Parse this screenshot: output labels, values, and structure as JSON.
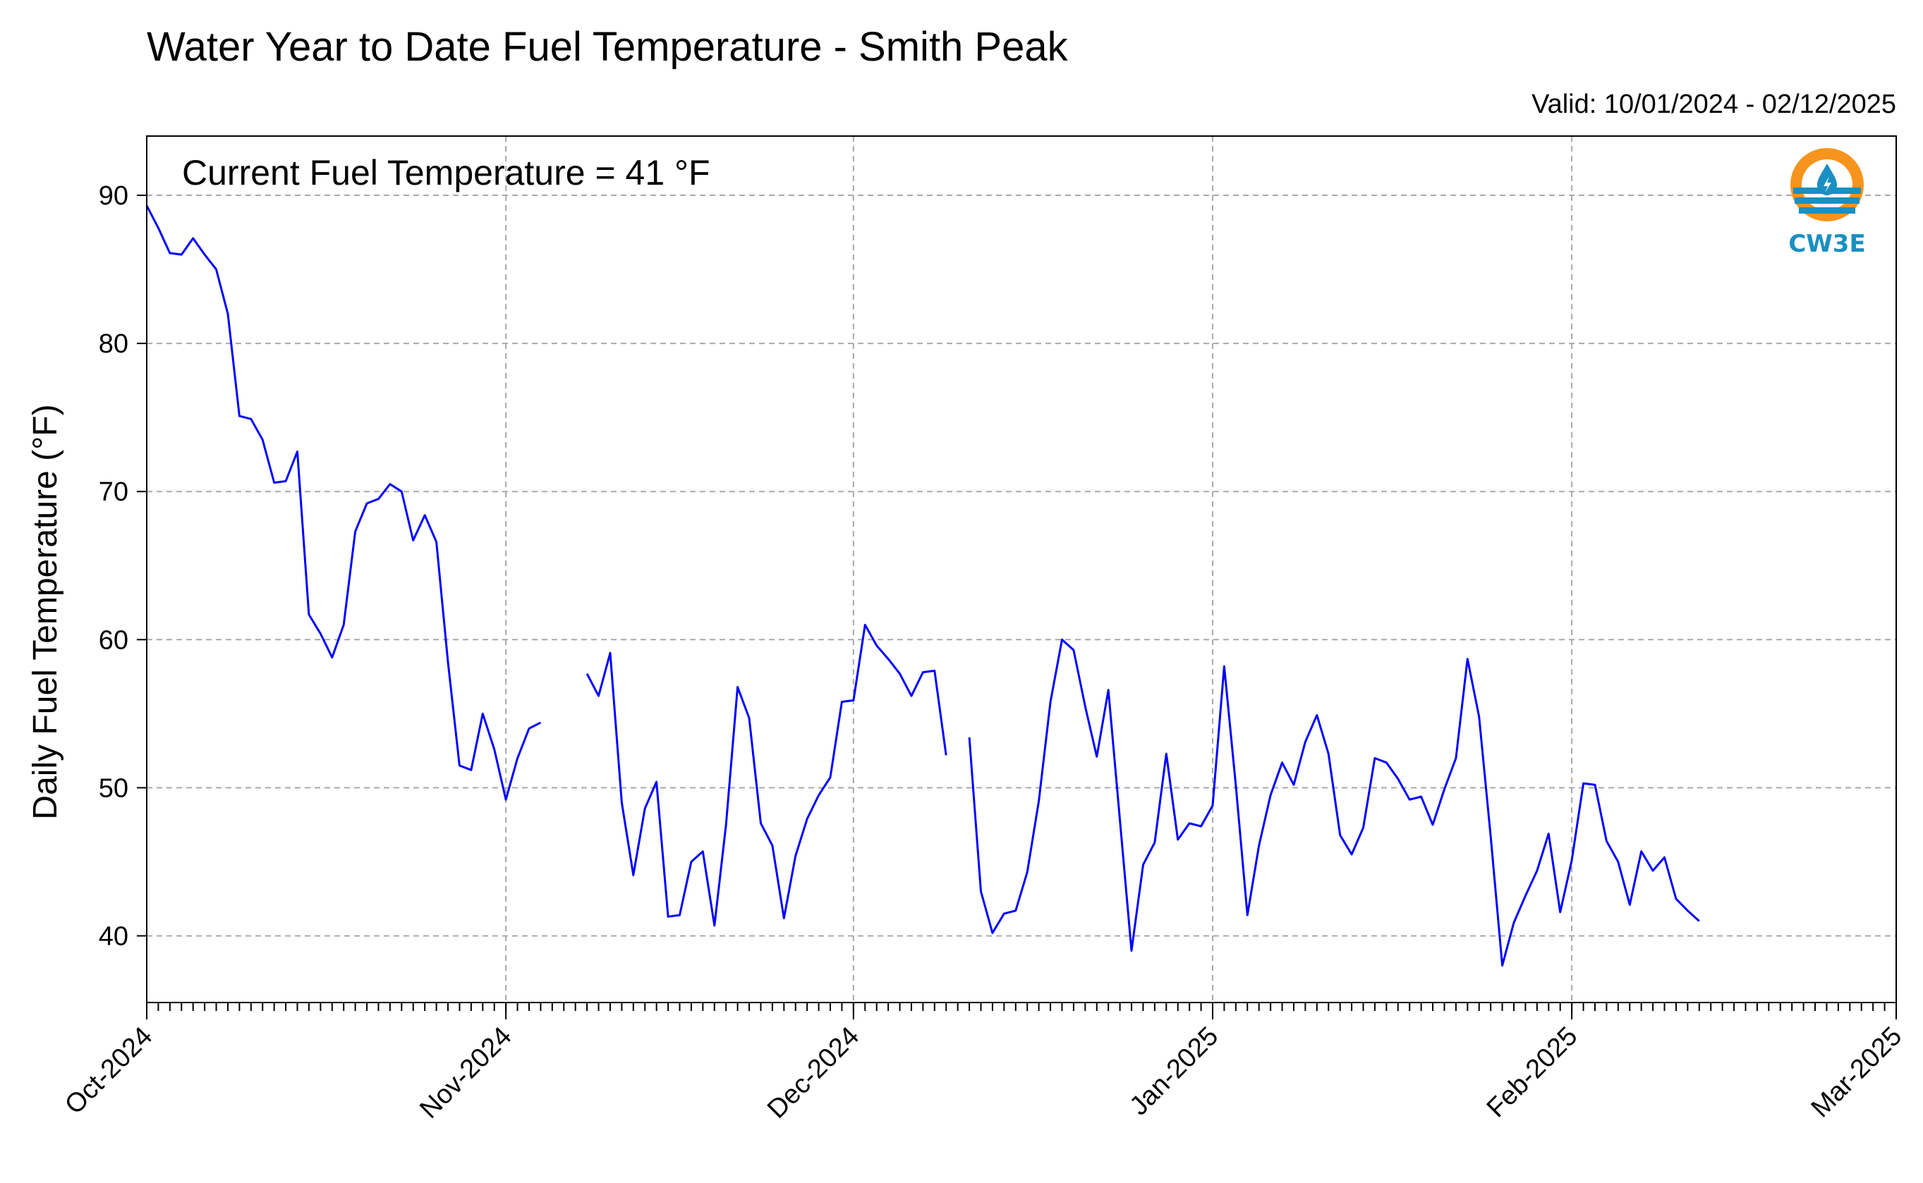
{
  "chart_data": {
    "type": "line",
    "title": "Water Year to Date Fuel Temperature - Smith Peak",
    "valid_label": "Valid: 10/01/2024 - 02/12/2025",
    "annotation": "Current Fuel Temperature = 41 °F",
    "ylabel": "Daily Fuel Temperature (°F)",
    "ylim": [
      35.5,
      94
    ],
    "yticks": [
      40,
      50,
      60,
      70,
      80,
      90
    ],
    "xlim": [
      "2024-10-01",
      "2025-03-01"
    ],
    "xticks": [
      {
        "date": "2024-10-01",
        "label": "Oct-2024"
      },
      {
        "date": "2024-11-01",
        "label": "Nov-2024"
      },
      {
        "date": "2024-12-01",
        "label": "Dec-2024"
      },
      {
        "date": "2025-01-01",
        "label": "Jan-2025"
      },
      {
        "date": "2025-02-01",
        "label": "Feb-2025"
      },
      {
        "date": "2025-03-01",
        "label": "Mar-2025"
      }
    ],
    "grid": true,
    "line_color": "#0000ff",
    "series": [
      {
        "values": [
          [
            "2024-10-01",
            89.3
          ],
          [
            "2024-10-02",
            87.8
          ],
          [
            "2024-10-03",
            86.1
          ],
          [
            "2024-10-04",
            86.0
          ],
          [
            "2024-10-05",
            87.1
          ],
          [
            "2024-10-06",
            86.0
          ],
          [
            "2024-10-07",
            85.0
          ],
          [
            "2024-10-08",
            82.0
          ],
          [
            "2024-10-09",
            75.1
          ],
          [
            "2024-10-10",
            74.9
          ],
          [
            "2024-10-11",
            73.5
          ],
          [
            "2024-10-12",
            70.6
          ],
          [
            "2024-10-13",
            70.7
          ],
          [
            "2024-10-14",
            72.7
          ],
          [
            "2024-10-15",
            61.7
          ],
          [
            "2024-10-16",
            60.4
          ],
          [
            "2024-10-17",
            58.8
          ],
          [
            "2024-10-18",
            61.0
          ],
          [
            "2024-10-19",
            67.3
          ],
          [
            "2024-10-20",
            69.2
          ],
          [
            "2024-10-21",
            69.5
          ],
          [
            "2024-10-22",
            70.5
          ],
          [
            "2024-10-23",
            70.0
          ],
          [
            "2024-10-24",
            66.7
          ],
          [
            "2024-10-25",
            68.4
          ],
          [
            "2024-10-26",
            66.6
          ],
          [
            "2024-10-27",
            58.5
          ],
          [
            "2024-10-28",
            51.5
          ],
          [
            "2024-10-29",
            51.2
          ],
          [
            "2024-10-30",
            55.0
          ],
          [
            "2024-10-31",
            52.6
          ],
          [
            "2024-11-01",
            49.2
          ],
          [
            "2024-11-02",
            52.0
          ],
          [
            "2024-11-03",
            54.0
          ],
          [
            "2024-11-04",
            54.4
          ],
          [
            "2024-11-05",
            null
          ],
          [
            "2024-11-06",
            null
          ],
          [
            "2024-11-07",
            null
          ],
          [
            "2024-11-08",
            57.7
          ],
          [
            "2024-11-09",
            56.2
          ],
          [
            "2024-11-10",
            59.1
          ],
          [
            "2024-11-11",
            49.0
          ],
          [
            "2024-11-12",
            44.1
          ],
          [
            "2024-11-13",
            48.6
          ],
          [
            "2024-11-14",
            50.4
          ],
          [
            "2024-11-15",
            41.3
          ],
          [
            "2024-11-16",
            41.4
          ],
          [
            "2024-11-17",
            45.0
          ],
          [
            "2024-11-18",
            45.7
          ],
          [
            "2024-11-19",
            40.7
          ],
          [
            "2024-11-20",
            47.5
          ],
          [
            "2024-11-21",
            56.8
          ],
          [
            "2024-11-22",
            54.7
          ],
          [
            "2024-11-23",
            47.6
          ],
          [
            "2024-11-24",
            46.1
          ],
          [
            "2024-11-25",
            41.2
          ],
          [
            "2024-11-26",
            45.4
          ],
          [
            "2024-11-27",
            47.9
          ],
          [
            "2024-11-28",
            49.5
          ],
          [
            "2024-11-29",
            50.7
          ],
          [
            "2024-11-30",
            55.8
          ],
          [
            "2024-12-01",
            55.9
          ],
          [
            "2024-12-02",
            61.0
          ],
          [
            "2024-12-03",
            59.6
          ],
          [
            "2024-12-04",
            58.7
          ],
          [
            "2024-12-05",
            57.7
          ],
          [
            "2024-12-06",
            56.2
          ],
          [
            "2024-12-07",
            57.8
          ],
          [
            "2024-12-08",
            57.9
          ],
          [
            "2024-12-09",
            52.2
          ],
          [
            "2024-12-10",
            null
          ],
          [
            "2024-12-11",
            53.4
          ],
          [
            "2024-12-12",
            43.0
          ],
          [
            "2024-12-13",
            40.2
          ],
          [
            "2024-12-14",
            41.5
          ],
          [
            "2024-12-15",
            41.7
          ],
          [
            "2024-12-16",
            44.3
          ],
          [
            "2024-12-17",
            49.1
          ],
          [
            "2024-12-18",
            55.8
          ],
          [
            "2024-12-19",
            60.0
          ],
          [
            "2024-12-20",
            59.3
          ],
          [
            "2024-12-21",
            55.5
          ],
          [
            "2024-12-22",
            52.1
          ],
          [
            "2024-12-23",
            56.6
          ],
          [
            "2024-12-24",
            47.8
          ],
          [
            "2024-12-25",
            39.0
          ],
          [
            "2024-12-26",
            44.8
          ],
          [
            "2024-12-27",
            46.3
          ],
          [
            "2024-12-28",
            52.3
          ],
          [
            "2024-12-29",
            46.5
          ],
          [
            "2024-12-30",
            47.6
          ],
          [
            "2024-12-31",
            47.4
          ],
          [
            "2025-01-01",
            48.8
          ],
          [
            "2025-01-02",
            58.2
          ],
          [
            "2025-01-03",
            50.2
          ],
          [
            "2025-01-04",
            41.4
          ],
          [
            "2025-01-05",
            46.1
          ],
          [
            "2025-01-06",
            49.5
          ],
          [
            "2025-01-07",
            51.7
          ],
          [
            "2025-01-08",
            50.2
          ],
          [
            "2025-01-09",
            53.1
          ],
          [
            "2025-01-10",
            54.9
          ],
          [
            "2025-01-11",
            52.3
          ],
          [
            "2025-01-12",
            46.8
          ],
          [
            "2025-01-13",
            45.5
          ],
          [
            "2025-01-14",
            47.3
          ],
          [
            "2025-01-15",
            52.0
          ],
          [
            "2025-01-16",
            51.7
          ],
          [
            "2025-01-17",
            50.6
          ],
          [
            "2025-01-18",
            49.2
          ],
          [
            "2025-01-19",
            49.4
          ],
          [
            "2025-01-20",
            47.5
          ],
          [
            "2025-01-21",
            49.9
          ],
          [
            "2025-01-22",
            52.0
          ],
          [
            "2025-01-23",
            58.7
          ],
          [
            "2025-01-24",
            54.8
          ],
          [
            "2025-01-25",
            46.7
          ],
          [
            "2025-01-26",
            38.0
          ],
          [
            "2025-01-27",
            40.9
          ],
          [
            "2025-01-28",
            42.7
          ],
          [
            "2025-01-29",
            44.4
          ],
          [
            "2025-01-30",
            46.9
          ],
          [
            "2025-01-31",
            41.6
          ],
          [
            "2025-02-01",
            45.1
          ],
          [
            "2025-02-02",
            50.3
          ],
          [
            "2025-02-03",
            50.2
          ],
          [
            "2025-02-04",
            46.4
          ],
          [
            "2025-02-05",
            45.0
          ],
          [
            "2025-02-06",
            42.1
          ],
          [
            "2025-02-07",
            45.7
          ],
          [
            "2025-02-08",
            44.4
          ],
          [
            "2025-02-09",
            45.3
          ],
          [
            "2025-02-10",
            42.5
          ],
          [
            "2025-02-11",
            41.7
          ],
          [
            "2025-02-12",
            41.0
          ]
        ]
      }
    ]
  },
  "logo": {
    "text": "CW3E",
    "colors": {
      "ring": "#f7941d",
      "waves": "#1a8fc2",
      "drop": "#1a8fc2"
    }
  }
}
